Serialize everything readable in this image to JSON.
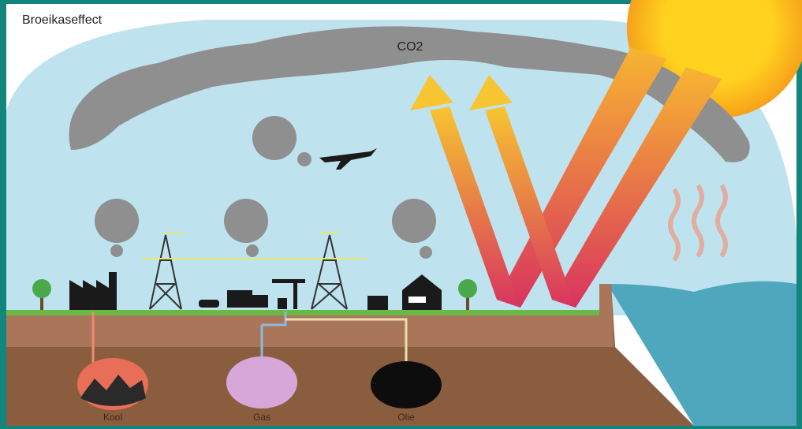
{
  "title": "Broeikaseffect",
  "labels": {
    "co2": "CO2",
    "coal": "Kool",
    "gas": "Gas",
    "oil": "Olie"
  }
}
